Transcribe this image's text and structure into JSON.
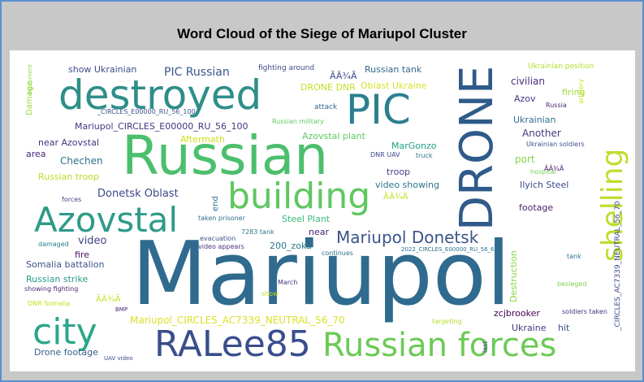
{
  "title": "Word Cloud of the Siege of Mariupol Cluster",
  "words": [
    {
      "text": "Mariupol",
      "color": "#2f6b8e"
    },
    {
      "text": "Russian",
      "color": "#4cbf6d"
    },
    {
      "text": "DRONE",
      "color": "#2f5b8a"
    },
    {
      "text": "destroyed",
      "color": "#2f8e89"
    },
    {
      "text": "PIC",
      "color": "#2b7f8e"
    },
    {
      "text": "building",
      "color": "#5fc75f"
    },
    {
      "text": "Azovstal",
      "color": "#2f9a88"
    },
    {
      "text": "Russian forces",
      "color": "#6cca57"
    },
    {
      "text": "RALee85",
      "color": "#3a4e8c"
    },
    {
      "text": "city",
      "color": "#2ba68a"
    },
    {
      "text": "shelling",
      "color": "#bdde2f"
    },
    {
      "text": "Mariupol Donetsk",
      "color": "#3b548a"
    },
    {
      "text": "Mariupol_CIRCLES_AC7339_NEUTRAL_56_70",
      "color": "#d8e22a"
    },
    {
      "text": "Donetsk Oblast",
      "color": "#3f4788"
    },
    {
      "text": "PIC Russian",
      "color": "#3a548c"
    },
    {
      "text": "Mariupol_CIRCLES_E00000_RU_56_100",
      "color": "#463480"
    },
    {
      "text": "show Ukrainian",
      "color": "#3d4e8a"
    },
    {
      "text": "Russian tank",
      "color": "#31688e"
    },
    {
      "text": "near Azovstal",
      "color": "#46307e"
    },
    {
      "text": "Chechen",
      "color": "#2c728e"
    },
    {
      "text": "Russian troop",
      "color": "#b8de29"
    },
    {
      "text": "Steel Plant",
      "color": "#38b977"
    },
    {
      "text": "video",
      "color": "#414487"
    },
    {
      "text": "Somalia battalion",
      "color": "#3a538b"
    },
    {
      "text": "Russian strike",
      "color": "#2a9d8a"
    },
    {
      "text": "Drone footage",
      "color": "#35608d"
    },
    {
      "text": "zcjbrooker",
      "color": "#440154"
    },
    {
      "text": "Ukraine",
      "color": "#453781"
    },
    {
      "text": "Ilyich Steel",
      "color": "#3e4a89"
    },
    {
      "text": "civilian",
      "color": "#472d7b"
    },
    {
      "text": "Another",
      "color": "#443a83"
    },
    {
      "text": "Ukrainian",
      "color": "#2d708e"
    },
    {
      "text": "footage",
      "color": "#481f71"
    },
    {
      "text": "troop",
      "color": "#424086"
    },
    {
      "text": "video showing",
      "color": "#2c738e"
    },
    {
      "text": "Azovstal plant",
      "color": "#5ec962"
    },
    {
      "text": "Oblast Ukraine",
      "color": "#d6e22b"
    },
    {
      "text": "Aftermath",
      "color": "#d0e11c"
    },
    {
      "text": "area",
      "color": "#482576"
    },
    {
      "text": "fire",
      "color": "#471063"
    },
    {
      "text": "port",
      "color": "#86d549"
    },
    {
      "text": "near",
      "color": "#482173"
    },
    {
      "text": "hit",
      "color": "#3b528b"
    },
    {
      "text": "Azov",
      "color": "#453882"
    },
    {
      "text": "firing",
      "color": "#a0da39"
    },
    {
      "text": "MarGonzo",
      "color": "#20a486"
    },
    {
      "text": "200_zoka",
      "color": "#2a788e"
    },
    {
      "text": "DRONE DNR",
      "color": "#c2df23"
    },
    {
      "text": "Destruction",
      "color": "#8bd646"
    },
    {
      "text": "Damage",
      "color": "#9dd93b"
    },
    {
      "text": "end",
      "color": "#2c728e"
    },
    {
      "text": "fighting around",
      "color": "#3e4c8a"
    },
    {
      "text": "artillery",
      "color": "#c7e020"
    },
    {
      "text": "Ukrainian position",
      "color": "#b5de2b"
    },
    {
      "text": "Russia",
      "color": "#482677"
    },
    {
      "text": "Ukrainian soldiers",
      "color": "#3b518b"
    },
    {
      "text": "hospital",
      "color": "#7ad151"
    },
    {
      "text": "Russian military",
      "color": "#5ec962"
    },
    {
      "text": "attack",
      "color": "#31688e"
    },
    {
      "text": "equipment",
      "color": "#8fd744"
    },
    {
      "text": "_CIRCLES_E00000_RU_56_100",
      "color": "#3b528b"
    },
    {
      "text": "DNR UAV",
      "color": "#3e4989"
    },
    {
      "text": "truck",
      "color": "#2e6e8e"
    },
    {
      "text": "forces",
      "color": "#414487"
    },
    {
      "text": "taken prisoner",
      "color": "#2c728e"
    },
    {
      "text": "evacuation",
      "color": "#3b528b"
    },
    {
      "text": "video appears",
      "color": "#46327e"
    },
    {
      "text": "7283 tank",
      "color": "#2a778e"
    },
    {
      "text": "damaged",
      "color": "#277f8e"
    },
    {
      "text": "continues",
      "color": "#2c718e"
    },
    {
      "text": "2022_CIRCLES_E00000_RU_56_61",
      "color": "#2c718e"
    },
    {
      "text": "showing fighting",
      "color": "#482878"
    },
    {
      "text": "DNR Somalia",
      "color": "#c5e021"
    },
    {
      "text": "March",
      "color": "#46327e"
    },
    {
      "text": "show",
      "color": "#bddf26"
    },
    {
      "text": "BMP",
      "color": "#482475"
    },
    {
      "text": "UAV video",
      "color": "#3d4e8a"
    },
    {
      "text": "targeting",
      "color": "#b5de2b"
    },
    {
      "text": "last",
      "color": "#3e4989"
    },
    {
      "text": "soldiers taken",
      "color": "#46337f"
    },
    {
      "text": "besieged",
      "color": "#7ad151"
    },
    {
      "text": "tank",
      "color": "#2d708e"
    },
    {
      "text": "_CIRCLES_AC7339_NEUTRAL_56_70",
      "color": "#3e4a89"
    },
    {
      "text": "ÃÂ¾Ã",
      "color": "#3e4a89"
    },
    {
      "text": "ÃÂ¾Ã",
      "color": "#c2df23"
    },
    {
      "text": "ÃÂ¾Ã",
      "color": "#c2df23"
    },
    {
      "text": "ÃÂ¾Ã",
      "color": "#481f71"
    }
  ]
}
